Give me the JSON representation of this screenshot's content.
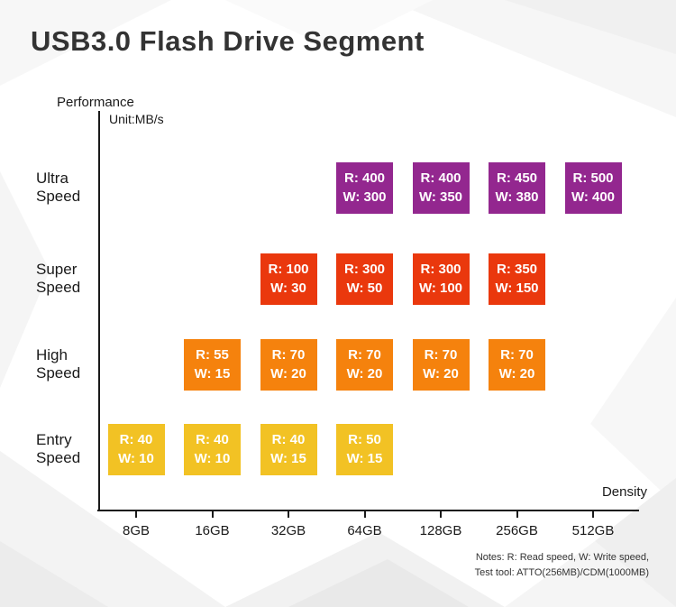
{
  "title": "USB3.0 Flash Drive Segment",
  "chart_data": {
    "type": "heatmap",
    "title": "USB3.0 Flash Drive Segment",
    "xlabel": "Density",
    "ylabel": "Performance",
    "unit_label": "Unit:MB/s",
    "categories": [
      "8GB",
      "16GB",
      "32GB",
      "64GB",
      "128GB",
      "256GB",
      "512GB"
    ],
    "cell_format": {
      "read_prefix": "R:",
      "write_prefix": "W:"
    },
    "rows": [
      {
        "label": "Ultra Speed",
        "color": "#93278f",
        "cells": [
          {
            "density": "64GB",
            "read": 400,
            "write": 300
          },
          {
            "density": "128GB",
            "read": 400,
            "write": 350
          },
          {
            "density": "256GB",
            "read": 450,
            "write": 380
          },
          {
            "density": "512GB",
            "read": 500,
            "write": 400
          }
        ]
      },
      {
        "label": "Super Speed",
        "color": "#ea380d",
        "cells": [
          {
            "density": "32GB",
            "read": 100,
            "write": 30
          },
          {
            "density": "64GB",
            "read": 300,
            "write": 50
          },
          {
            "density": "128GB",
            "read": 300,
            "write": 100
          },
          {
            "density": "256GB",
            "read": 350,
            "write": 150
          }
        ]
      },
      {
        "label": "High Speed",
        "color": "#f5820d",
        "cells": [
          {
            "density": "16GB",
            "read": 55,
            "write": 15
          },
          {
            "density": "32GB",
            "read": 70,
            "write": 20
          },
          {
            "density": "64GB",
            "read": 70,
            "write": 20
          },
          {
            "density": "128GB",
            "read": 70,
            "write": 20
          },
          {
            "density": "256GB",
            "read": 70,
            "write": 20
          }
        ]
      },
      {
        "label": "Entry Speed",
        "color": "#f2c224",
        "cells": [
          {
            "density": "8GB",
            "read": 40,
            "write": 10
          },
          {
            "density": "16GB",
            "read": 40,
            "write": 10
          },
          {
            "density": "32GB",
            "read": 40,
            "write": 15
          },
          {
            "density": "64GB",
            "read": 50,
            "write": 15
          }
        ]
      }
    ],
    "legend_position": "none",
    "grid": false,
    "notes": [
      "Notes: R: Read speed, W: Write speed,",
      "Test tool: ATTO(256MB)/CDM(1000MB)"
    ]
  }
}
